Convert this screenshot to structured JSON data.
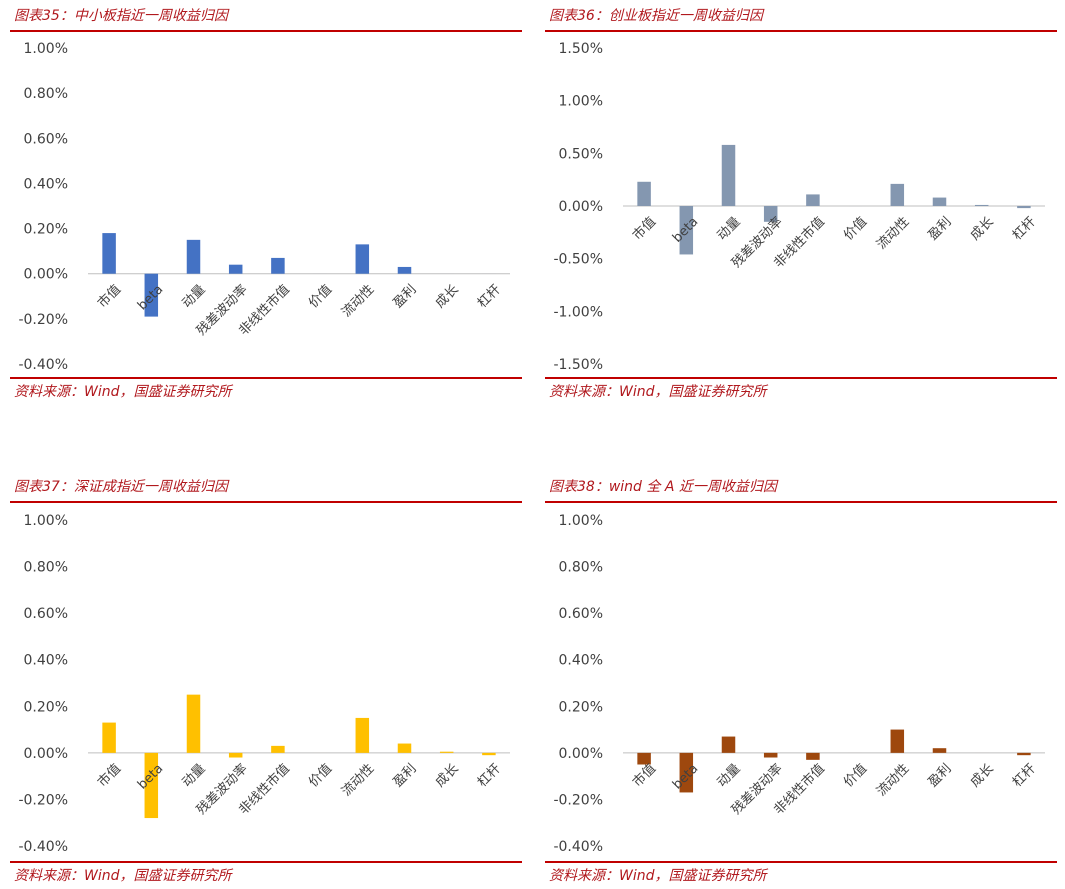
{
  "source_text": "资料来源：Wind，国盛证券研究所",
  "panels": [
    {
      "title": "图表35：中小板指近一周收益归因"
    },
    {
      "title": "图表36：创业板指近一周收益归因"
    },
    {
      "title": "图表37：深证成指近一周收益归因"
    },
    {
      "title": "图表38：wind 全 A 近一周收益归因"
    }
  ],
  "chart_data": [
    {
      "type": "bar",
      "title": "图表35：中小板指近一周收益归因",
      "categories": [
        "市值",
        "beta",
        "动量",
        "残差波动率",
        "非线性市值",
        "价值",
        "流动性",
        "盈利",
        "成长",
        "杠杆"
      ],
      "values": [
        0.0018,
        -0.0019,
        0.0015,
        0.0004,
        0.0007,
        0.0,
        0.0013,
        0.0003,
        0.0,
        0.0
      ],
      "ylim": [
        -0.004,
        0.01
      ],
      "yticks": [
        "1.00%",
        "0.80%",
        "0.60%",
        "0.40%",
        "0.20%",
        "0.00%",
        "-0.20%",
        "-0.40%"
      ],
      "color": "#4472c4",
      "grid": false
    },
    {
      "type": "bar",
      "title": "图表36：创业板指近一周收益归因",
      "categories": [
        "市值",
        "beta",
        "动量",
        "残差波动率",
        "非线性市值",
        "价值",
        "流动性",
        "盈利",
        "成长",
        "杠杆"
      ],
      "values": [
        0.0023,
        -0.0046,
        0.0058,
        -0.0015,
        0.0011,
        0.0,
        0.0021,
        0.0008,
        0.0001,
        -0.0002
      ],
      "ylim": [
        -0.015,
        0.015
      ],
      "yticks": [
        "1.50%",
        "1.00%",
        "0.50%",
        "0.00%",
        "-0.50%",
        "-1.00%",
        "-1.50%"
      ],
      "color": "#8497b0",
      "grid": false
    },
    {
      "type": "bar",
      "title": "图表37：深证成指近一周收益归因",
      "categories": [
        "市值",
        "beta",
        "动量",
        "残差波动率",
        "非线性市值",
        "价值",
        "流动性",
        "盈利",
        "成长",
        "杠杆"
      ],
      "values": [
        0.0013,
        -0.0028,
        0.0025,
        -0.0002,
        0.0003,
        0.0,
        0.0015,
        0.0004,
        5e-05,
        -0.0001
      ],
      "ylim": [
        -0.004,
        0.01
      ],
      "yticks": [
        "1.00%",
        "0.80%",
        "0.60%",
        "0.40%",
        "0.20%",
        "0.00%",
        "-0.20%",
        "-0.40%"
      ],
      "color": "#ffc000",
      "grid": false
    },
    {
      "type": "bar",
      "title": "图表38：wind 全 A 近一周收益归因",
      "categories": [
        "市值",
        "beta",
        "动量",
        "残差波动率",
        "非线性市值",
        "价值",
        "流动性",
        "盈利",
        "成长",
        "杠杆"
      ],
      "values": [
        -0.0005,
        -0.0017,
        0.0007,
        -0.0002,
        -0.0003,
        0.0,
        0.001,
        0.0002,
        0.0,
        -0.0001
      ],
      "ylim": [
        -0.004,
        0.01
      ],
      "yticks": [
        "1.00%",
        "0.80%",
        "0.60%",
        "0.40%",
        "0.20%",
        "0.00%",
        "-0.20%",
        "-0.40%"
      ],
      "color": "#9e480e",
      "grid": false
    }
  ]
}
